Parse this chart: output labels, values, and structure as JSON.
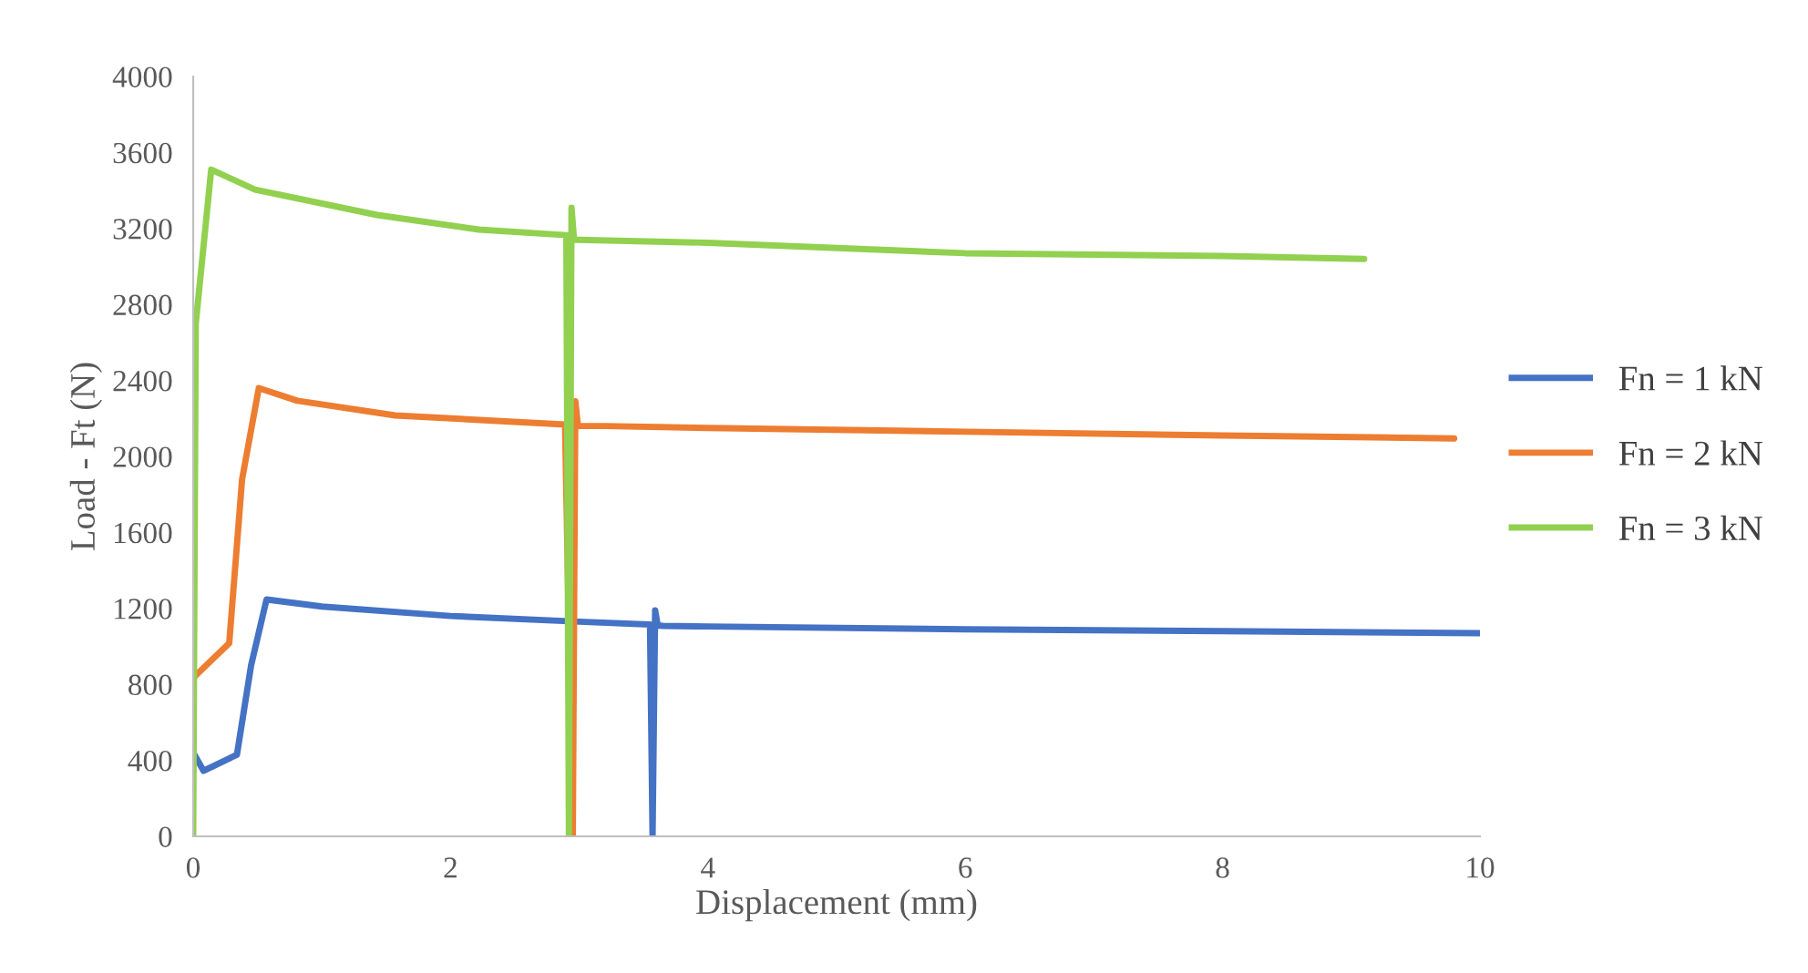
{
  "chart_data": {
    "type": "line",
    "xlabel": "Displacement (mm)",
    "ylabel": "Load - Ft (N)",
    "xlim": [
      0,
      10
    ],
    "xticks": [
      0,
      2,
      4,
      6,
      8,
      10
    ],
    "ylim": [
      0,
      4000
    ],
    "yticks": [
      0,
      400,
      800,
      1200,
      1600,
      2000,
      2400,
      2800,
      3200,
      3600,
      4000
    ],
    "grid": false,
    "legend": "right",
    "marker": "none",
    "line_style": "solid",
    "series": [
      {
        "name": "Fn = 1 kN",
        "color": "#4472c4",
        "x": [
          0,
          0.08,
          0.34,
          0.45,
          0.57,
          1.0,
          2.0,
          3.0,
          3.55,
          3.57,
          3.59,
          3.61,
          3.65,
          4.0,
          6.0,
          8.0,
          10.0
        ],
        "values": [
          441,
          345,
          430,
          900,
          1247,
          1210,
          1160,
          1130,
          1115,
          0,
          1190,
          1110,
          1108,
          1105,
          1090,
          1080,
          1070
        ]
      },
      {
        "name": "Fn = 2 kN",
        "color": "#ed7d31",
        "x": [
          0,
          0.28,
          0.38,
          0.51,
          0.81,
          1.57,
          2.89,
          2.95,
          2.97,
          2.99,
          3.2,
          4.0,
          6.0,
          8.0,
          9.8
        ],
        "values": [
          834,
          1017,
          1880,
          2360,
          2293,
          2216,
          2168,
          0,
          2290,
          2160,
          2160,
          2150,
          2130,
          2110,
          2095
        ]
      },
      {
        "name": "Fn = 3 kN",
        "color": "#92d050",
        "x": [
          0,
          0.02,
          0.14,
          0.48,
          1.43,
          2.22,
          2.9,
          2.92,
          2.94,
          2.96,
          3.0,
          4.0,
          6.0,
          8.0,
          9.1
        ],
        "values": [
          0,
          2700,
          3510,
          3405,
          3271,
          3194,
          3165,
          0,
          3310,
          3140,
          3140,
          3125,
          3070,
          3055,
          3040
        ]
      }
    ]
  }
}
